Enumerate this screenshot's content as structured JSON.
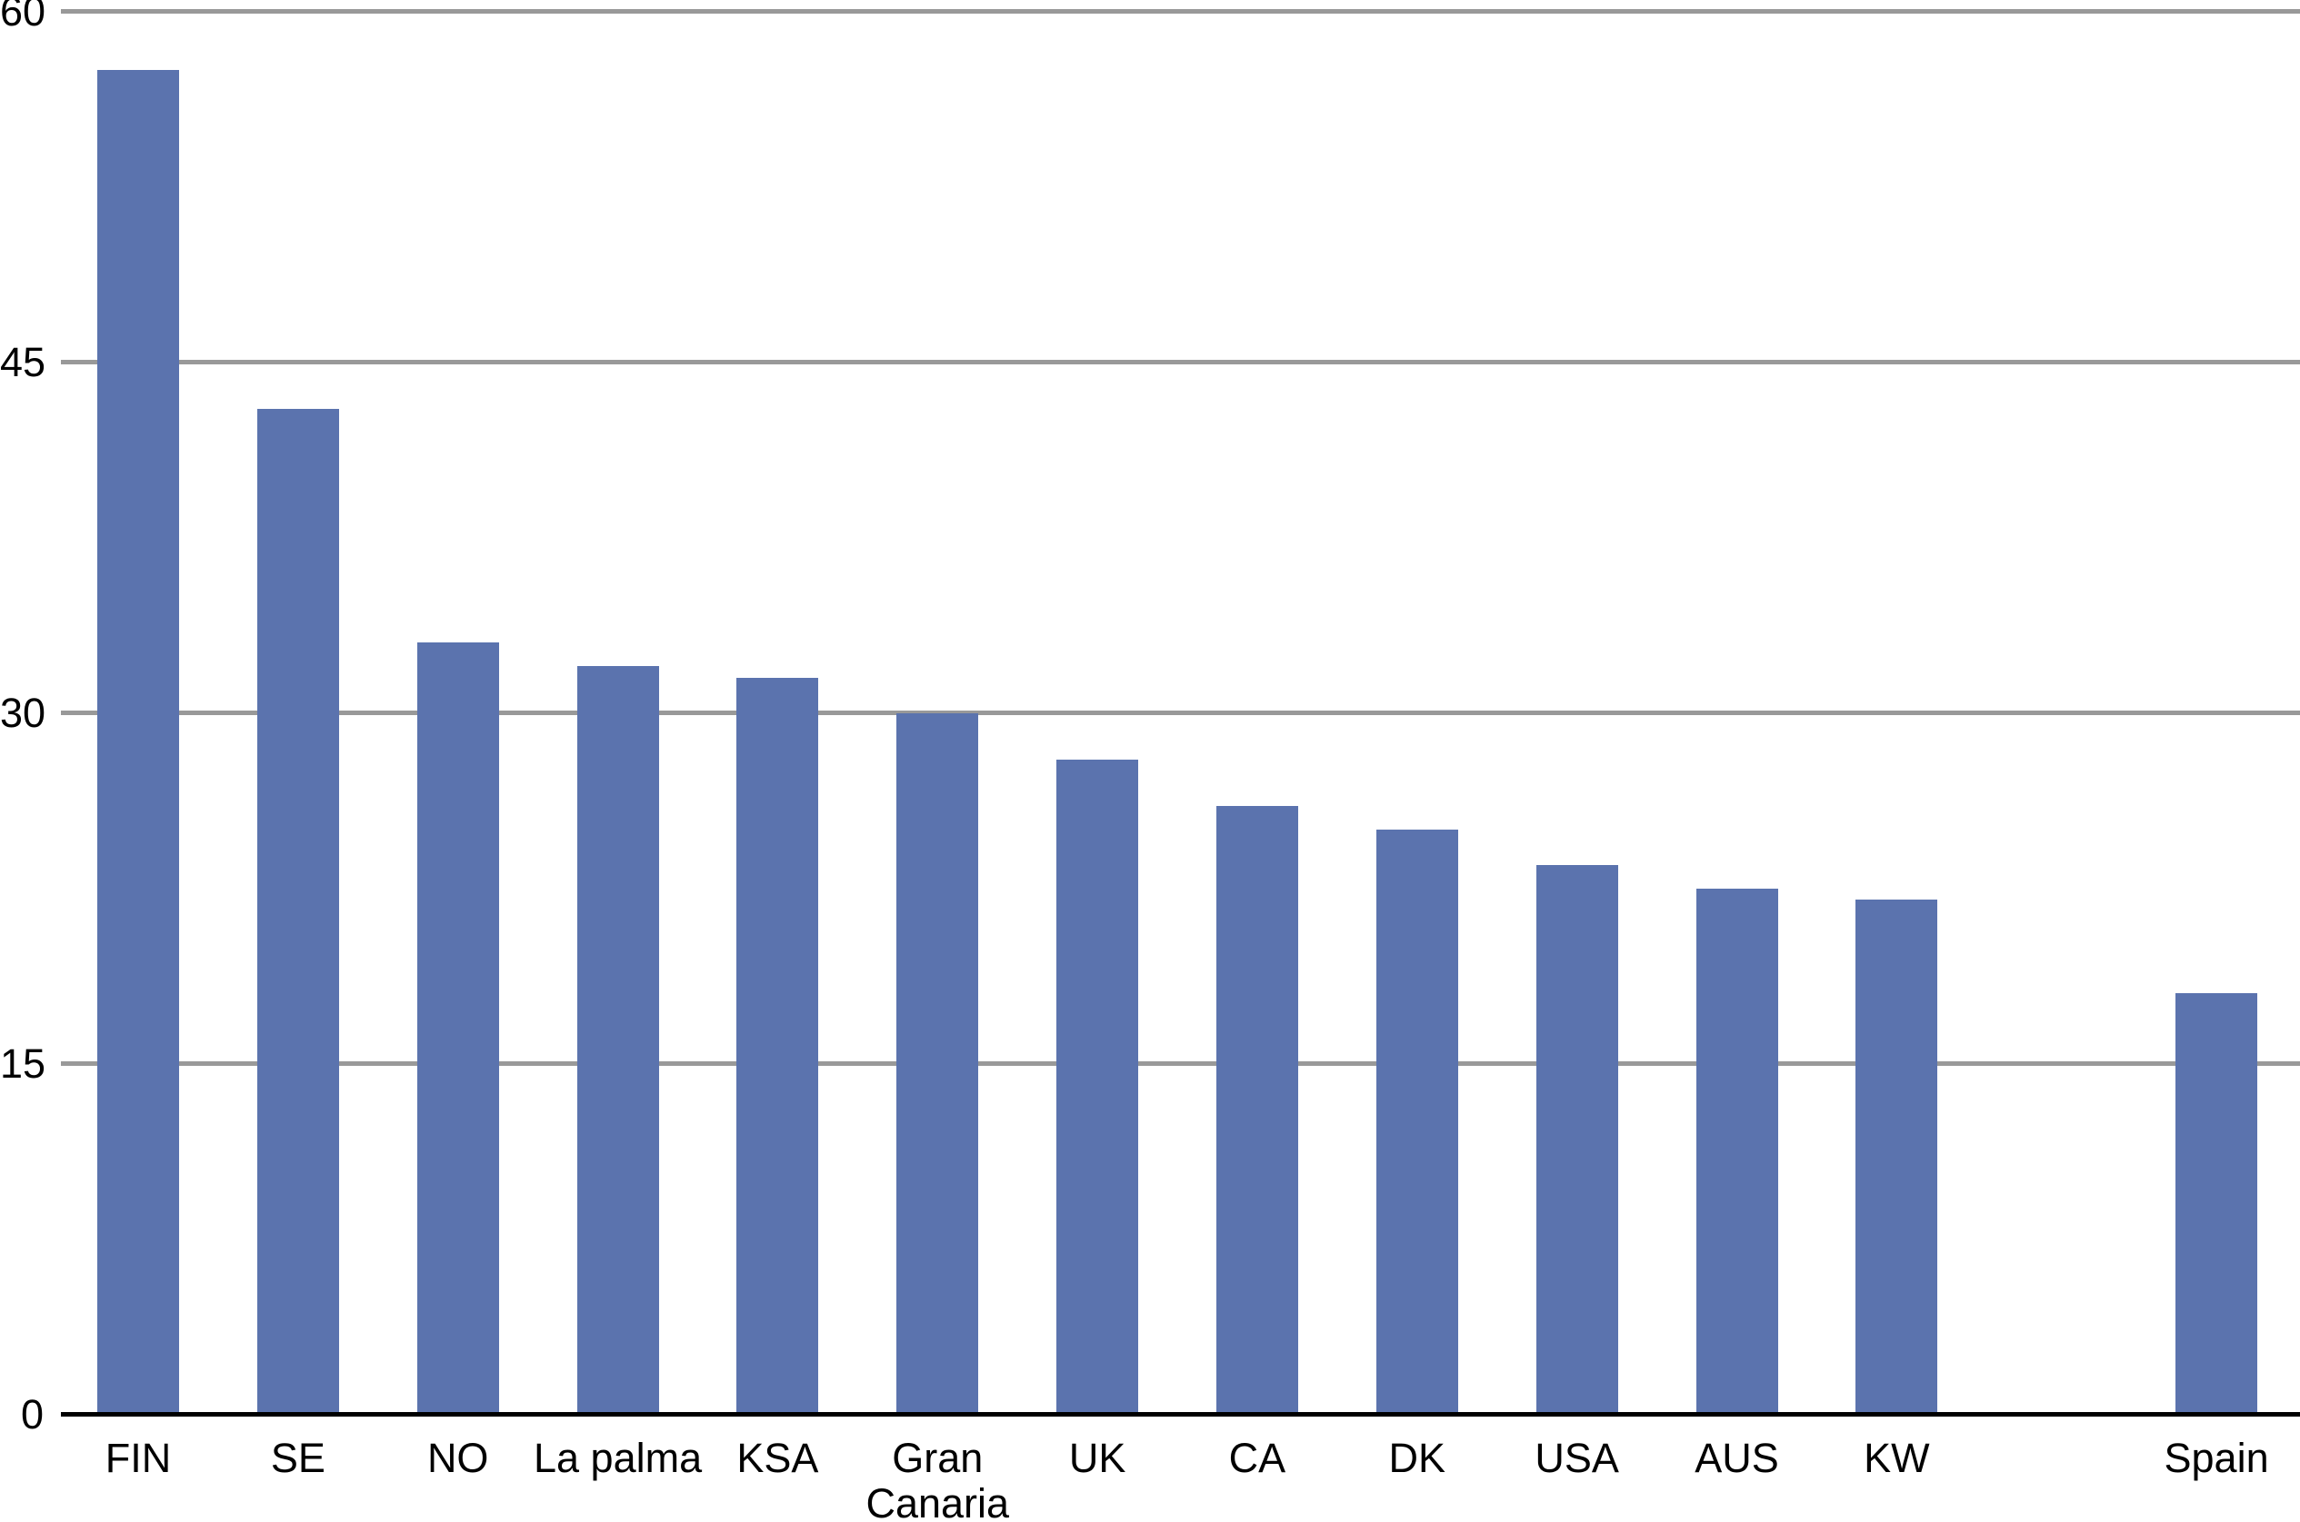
{
  "chart_data": {
    "type": "bar",
    "title": "",
    "xlabel": "",
    "ylabel": "",
    "categories": [
      "FIN",
      "SE",
      "NO",
      "La palma",
      "KSA",
      "Gran Canaria",
      "UK",
      "CA",
      "DK",
      "USA",
      "AUS",
      "KW",
      "Spain"
    ],
    "values": [
      57.5,
      43,
      33,
      32,
      31.5,
      30,
      28,
      26,
      25,
      23.5,
      22.5,
      22,
      18
    ],
    "slot_indices": [
      0,
      1,
      2,
      3,
      4,
      5,
      6,
      7,
      8,
      9,
      10,
      11,
      13
    ],
    "total_slots": 14,
    "empty_slot_index": 12,
    "ylim": [
      0,
      60
    ],
    "yticks": [
      0,
      15,
      30,
      45,
      60
    ],
    "ytick_labels": [
      "0",
      "15",
      "30",
      "45",
      "60"
    ],
    "grid": "horizontal",
    "legend": "none",
    "bar_color": "#5b73ae",
    "gridline_color": "#999999",
    "axis_color": "#000000",
    "text_color": "#000000",
    "background": "#ffffff"
  }
}
